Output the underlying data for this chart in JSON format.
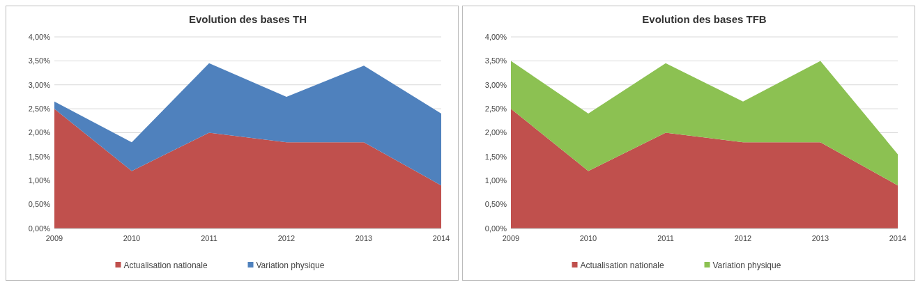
{
  "chart_data": [
    {
      "type": "area",
      "title": "Evolution des bases TH",
      "stacked": true,
      "categories": [
        "2009",
        "2010",
        "2011",
        "2012",
        "2013",
        "2014"
      ],
      "series": [
        {
          "name": "Actualisation nationale",
          "color": "#c0504d",
          "values": [
            2.5,
            1.2,
            2.0,
            1.8,
            1.8,
            0.9
          ]
        },
        {
          "name": "Variation physique",
          "color": "#4f81bd",
          "values": [
            0.15,
            0.6,
            1.45,
            0.95,
            1.6,
            1.5
          ]
        }
      ],
      "ylim": [
        0,
        4
      ],
      "yticks": [
        {
          "value": 0,
          "label": "0,00%"
        },
        {
          "value": 0.5,
          "label": "0,50%"
        },
        {
          "value": 1,
          "label": "1,00%"
        },
        {
          "value": 1.5,
          "label": "1,50%"
        },
        {
          "value": 2,
          "label": "2,00%"
        },
        {
          "value": 2.5,
          "label": "2,50%"
        },
        {
          "value": 3,
          "label": "3,00%"
        },
        {
          "value": 3.5,
          "label": "3,50%"
        },
        {
          "value": 4,
          "label": "4,00%"
        }
      ],
      "grid": "y",
      "legend": "bottom"
    },
    {
      "type": "area",
      "title": "Evolution des bases TFB",
      "stacked": true,
      "categories": [
        "2009",
        "2010",
        "2011",
        "2012",
        "2013",
        "2014"
      ],
      "series": [
        {
          "name": "Actualisation nationale",
          "color": "#c0504d",
          "values": [
            2.5,
            1.2,
            2.0,
            1.8,
            1.8,
            0.9
          ]
        },
        {
          "name": "Variation physique",
          "color": "#8cc152",
          "values": [
            1.0,
            1.2,
            1.45,
            0.85,
            1.7,
            0.65
          ]
        }
      ],
      "ylim": [
        0,
        4
      ],
      "yticks": [
        {
          "value": 0,
          "label": "0,00%"
        },
        {
          "value": 0.5,
          "label": "0,50%"
        },
        {
          "value": 1,
          "label": "1,00%"
        },
        {
          "value": 1.5,
          "label": "1,50%"
        },
        {
          "value": 2,
          "label": "2,00%"
        },
        {
          "value": 2.5,
          "label": "2,50%"
        },
        {
          "value": 3,
          "label": "3,00%"
        },
        {
          "value": 3.5,
          "label": "3,50%"
        },
        {
          "value": 4,
          "label": "4,00%"
        }
      ],
      "grid": "y",
      "legend": "bottom"
    }
  ]
}
